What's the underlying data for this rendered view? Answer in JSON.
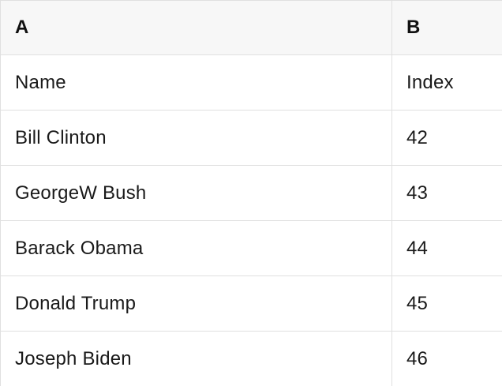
{
  "table": {
    "column_headers": [
      {
        "label": "A"
      },
      {
        "label": "B"
      }
    ],
    "rows": [
      {
        "a": "Name",
        "b": "Index"
      },
      {
        "a": "Bill Clinton",
        "b": "42"
      },
      {
        "a": "GeorgeW Bush",
        "b": "43"
      },
      {
        "a": "Barack Obama",
        "b": "44"
      },
      {
        "a": "Donald Trump",
        "b": "45"
      },
      {
        "a": "Joseph Biden",
        "b": "46"
      }
    ]
  },
  "colors": {
    "header_background": "#f7f7f7",
    "border": "#e0e0e0",
    "text": "#1a1a1a"
  }
}
